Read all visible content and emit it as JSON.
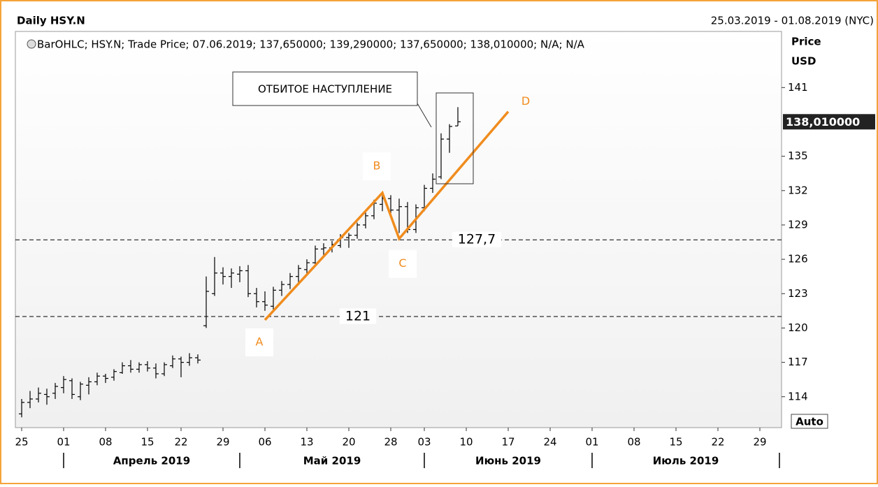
{
  "chart_data": {
    "type": "ohlc",
    "title": "Daily HSY.N",
    "date_range": "25.03.2019 - 01.08.2019 (NYC)",
    "legend": "BarOHLC; HSY.N; Trade Price; 07.06.2019; 137,650000; 139,290000; 137,650000; 138,010000; N/A; N/A",
    "y_label": "Price",
    "y_unit": "USD",
    "scale_mode": "Auto",
    "color": "#000000",
    "x": [
      "25.03.2019",
      "26.03.2019",
      "27.03.2019",
      "28.03.2019",
      "29.03.2019",
      "01.04.2019",
      "02.04.2019",
      "03.04.2019",
      "04.04.2019",
      "05.04.2019",
      "08.04.2019",
      "09.04.2019",
      "10.04.2019",
      "11.04.2019",
      "12.04.2019",
      "15.04.2019",
      "16.04.2019",
      "17.04.2019",
      "18.04.2019",
      "22.04.2019",
      "23.04.2019",
      "24.04.2019",
      "25.04.2019",
      "26.04.2019",
      "29.04.2019",
      "30.04.2019",
      "01.05.2019",
      "02.05.2019",
      "03.05.2019",
      "06.05.2019",
      "07.05.2019",
      "08.05.2019",
      "09.05.2019",
      "10.05.2019",
      "13.05.2019",
      "14.05.2019",
      "15.05.2019",
      "16.05.2019",
      "17.05.2019",
      "20.05.2019",
      "21.05.2019",
      "22.05.2019",
      "23.05.2019",
      "24.05.2019",
      "28.05.2019",
      "29.05.2019",
      "30.05.2019",
      "31.05.2019",
      "03.06.2019",
      "04.06.2019",
      "05.06.2019",
      "06.06.2019",
      "07.06.2019"
    ],
    "open": [
      112.5,
      113.5,
      113.8,
      114.2,
      114.3,
      114.8,
      115.4,
      114.0,
      115.0,
      115.3,
      115.8,
      115.7,
      116.1,
      116.7,
      116.4,
      116.8,
      116.5,
      116.0,
      116.7,
      117.3,
      117.0,
      117.4,
      120.2,
      123.0,
      124.8,
      124.5,
      124.7,
      125.0,
      123.0,
      122.3,
      121.9,
      123.3,
      123.8,
      124.5,
      125.1,
      125.7,
      126.9,
      127.0,
      127.2,
      127.9,
      128.1,
      129.0,
      129.8,
      130.8,
      131.3,
      130.3,
      130.6,
      128.6,
      130.5,
      132.2,
      133.2,
      136.5,
      137.65
    ],
    "high": [
      113.8,
      114.5,
      114.8,
      114.7,
      115.2,
      115.8,
      115.6,
      115.3,
      115.7,
      116.1,
      116.0,
      116.4,
      117.0,
      117.2,
      117.0,
      117.1,
      116.9,
      117.0,
      117.6,
      117.5,
      117.8,
      117.7,
      124.5,
      126.2,
      125.3,
      125.2,
      125.4,
      125.5,
      123.5,
      123.2,
      123.6,
      124.1,
      124.8,
      125.5,
      126.0,
      127.2,
      127.4,
      127.6,
      128.2,
      128.3,
      129.2,
      130.1,
      131.2,
      131.8,
      131.6,
      131.3,
      131.0,
      130.8,
      132.5,
      133.5,
      137.0,
      137.8,
      139.29
    ],
    "low": [
      112.2,
      113.0,
      113.5,
      113.3,
      113.8,
      114.3,
      113.8,
      113.7,
      114.2,
      115.0,
      115.2,
      115.4,
      116.0,
      116.1,
      116.1,
      116.2,
      115.6,
      115.8,
      116.5,
      115.7,
      116.7,
      116.9,
      120.0,
      122.8,
      123.8,
      123.5,
      124.0,
      122.7,
      121.8,
      121.5,
      121.6,
      122.8,
      123.4,
      124.0,
      124.6,
      125.5,
      126.3,
      126.6,
      127.0,
      127.0,
      127.8,
      128.7,
      129.5,
      130.2,
      130.0,
      128.3,
      128.3,
      128.3,
      130.2,
      131.8,
      133.0,
      135.3,
      137.65
    ],
    "close": [
      113.5,
      113.8,
      114.3,
      114.0,
      114.9,
      115.5,
      114.2,
      115.1,
      115.3,
      115.8,
      115.6,
      116.2,
      116.7,
      116.4,
      116.8,
      116.5,
      116.0,
      116.8,
      117.3,
      117.0,
      117.4,
      117.2,
      123.2,
      124.8,
      124.5,
      124.8,
      125.0,
      123.0,
      122.3,
      122.0,
      123.3,
      123.8,
      124.5,
      125.2,
      125.7,
      126.9,
      127.0,
      127.3,
      127.9,
      128.1,
      129.0,
      129.8,
      130.9,
      131.3,
      130.3,
      130.6,
      128.6,
      130.5,
      132.2,
      133.0,
      136.5,
      137.6,
      138.01
    ],
    "ylim": [
      111.3,
      145.9
    ],
    "yticks": [
      114,
      117,
      120,
      123,
      126,
      129,
      132,
      135,
      141
    ],
    "xticks": [
      {
        "value": "25.03.2019",
        "label": "25"
      },
      {
        "value": "01.04.2019",
        "label": "01"
      },
      {
        "value": "08.04.2019",
        "label": "08"
      },
      {
        "value": "15.04.2019",
        "label": "15"
      },
      {
        "value": "22.04.2019",
        "label": "22"
      },
      {
        "value": "29.04.2019",
        "label": "29"
      },
      {
        "value": "06.05.2019",
        "label": "06"
      },
      {
        "value": "13.05.2019",
        "label": "13"
      },
      {
        "value": "20.05.2019",
        "label": "20"
      },
      {
        "value": "28.05.2019",
        "label": "28"
      },
      {
        "value": "03.06.2019",
        "label": "03"
      },
      {
        "value": "10.06.2019",
        "label": "10"
      },
      {
        "value": "17.06.2019",
        "label": "17"
      },
      {
        "value": "24.06.2019",
        "label": "24"
      },
      {
        "value": "01.07.2019",
        "label": "01"
      },
      {
        "value": "08.07.2019",
        "label": "08"
      },
      {
        "value": "15.07.2019",
        "label": "15"
      },
      {
        "value": "22.07.2019",
        "label": "22"
      },
      {
        "value": "29.07.2019",
        "label": "29"
      }
    ],
    "months": [
      {
        "start": "01.04.2019",
        "label": "Апрель 2019"
      },
      {
        "start": "01.05.2019",
        "label": "Май 2019"
      },
      {
        "start": "03.06.2019",
        "label": "Июнь 2019"
      },
      {
        "start": "01.07.2019",
        "label": "Июль 2019"
      },
      {
        "start": "01.08.2019"
      }
    ],
    "last_price": {
      "value": 138.01,
      "label": "138,010000"
    },
    "hlines": [
      {
        "value": 127.7,
        "label": "127,7"
      },
      {
        "value": 121,
        "label": "121"
      }
    ],
    "wave": {
      "labels": [
        "A",
        "B",
        "C",
        "D"
      ],
      "x": [
        "06.05.2019",
        "24.05.2019",
        "29.05.2019",
        "17.06.2019"
      ],
      "y": [
        120.7,
        131.8,
        127.8,
        138.9
      ],
      "color": "#f08c1e"
    },
    "annotation": "ОТБИТОЕ НАСТУПЛЕНИЕ"
  }
}
